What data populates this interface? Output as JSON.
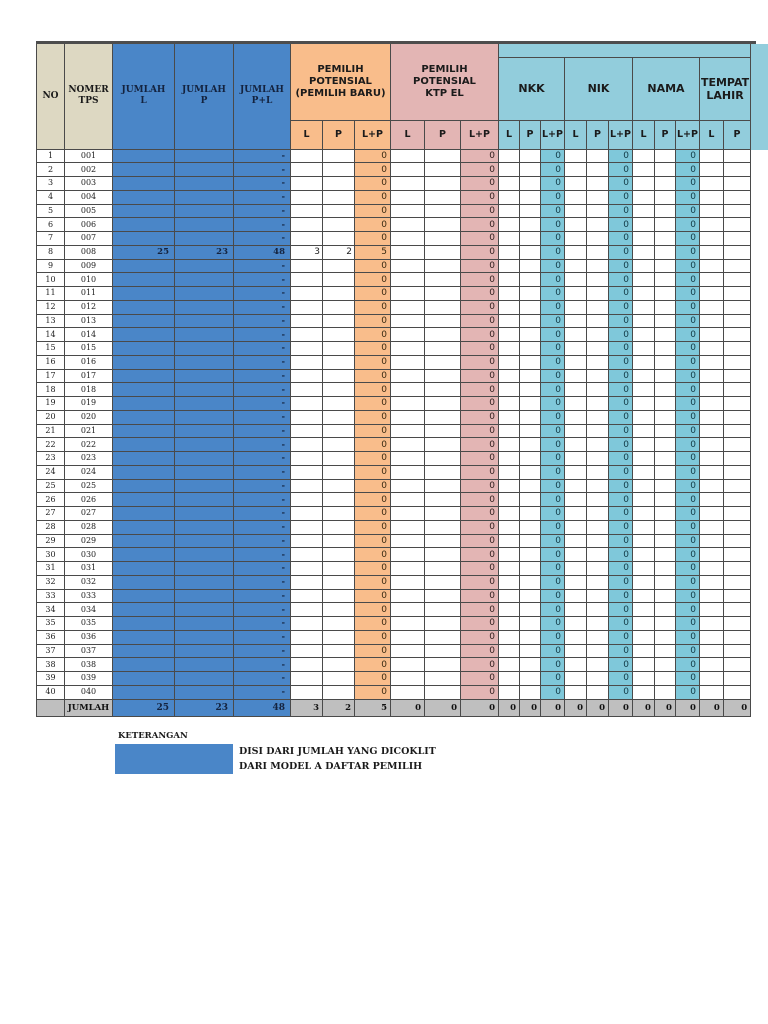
{
  "colors": {
    "blue": "#4a86c8",
    "orange": "#f9bd8b",
    "pink": "#e3b5b4",
    "cyan": "#92cddc",
    "tan": "#ddd8c2",
    "total_gray": "#bfbfbf"
  },
  "table": {
    "headers": {
      "no": "NO",
      "nomer_tps": "NOMER\nTPS",
      "jumlah_l": "JUMLAH\nL",
      "jumlah_p": "JUMLAH\nP",
      "jumlah_pl": "JUMLAH\nP+L",
      "pemilih_baru": "PEMILIH\nPOTENSIAL\n(PEMILIH BARU)",
      "ktp_el": "PEMILIH\nPOTENSIAL\nKTP EL",
      "nkk": "NKK",
      "nik": "NIK",
      "nama": "NAMA",
      "tempat_lahir": "TEMPAT\nLAHIR",
      "band": "",
      "sub": [
        "L",
        "P",
        "L+P"
      ]
    },
    "rows": [
      [
        "1",
        "001",
        "",
        "",
        "-",
        "",
        "",
        "0",
        "",
        "",
        "0",
        "",
        "",
        "0",
        "",
        "",
        "0",
        "",
        "",
        "0",
        "",
        ""
      ],
      [
        "2",
        "002",
        "",
        "",
        "-",
        "",
        "",
        "0",
        "",
        "",
        "0",
        "",
        "",
        "0",
        "",
        "",
        "0",
        "",
        "",
        "0",
        "",
        ""
      ],
      [
        "3",
        "003",
        "",
        "",
        "-",
        "",
        "",
        "0",
        "",
        "",
        "0",
        "",
        "",
        "0",
        "",
        "",
        "0",
        "",
        "",
        "0",
        "",
        ""
      ],
      [
        "4",
        "004",
        "",
        "",
        "-",
        "",
        "",
        "0",
        "",
        "",
        "0",
        "",
        "",
        "0",
        "",
        "",
        "0",
        "",
        "",
        "0",
        "",
        ""
      ],
      [
        "5",
        "005",
        "",
        "",
        "-",
        "",
        "",
        "0",
        "",
        "",
        "0",
        "",
        "",
        "0",
        "",
        "",
        "0",
        "",
        "",
        "0",
        "",
        ""
      ],
      [
        "6",
        "006",
        "",
        "",
        "-",
        "",
        "",
        "0",
        "",
        "",
        "0",
        "",
        "",
        "0",
        "",
        "",
        "0",
        "",
        "",
        "0",
        "",
        ""
      ],
      [
        "7",
        "007",
        "",
        "",
        "-",
        "",
        "",
        "0",
        "",
        "",
        "0",
        "",
        "",
        "0",
        "",
        "",
        "0",
        "",
        "",
        "0",
        "",
        ""
      ],
      [
        "8",
        "008",
        "25",
        "23",
        "48",
        "3",
        "2",
        "5",
        "",
        "",
        "0",
        "",
        "",
        "0",
        "",
        "",
        "0",
        "",
        "",
        "0",
        "",
        ""
      ],
      [
        "9",
        "009",
        "",
        "",
        "-",
        "",
        "",
        "0",
        "",
        "",
        "0",
        "",
        "",
        "0",
        "",
        "",
        "0",
        "",
        "",
        "0",
        "",
        ""
      ],
      [
        "10",
        "010",
        "",
        "",
        "-",
        "",
        "",
        "0",
        "",
        "",
        "0",
        "",
        "",
        "0",
        "",
        "",
        "0",
        "",
        "",
        "0",
        "",
        ""
      ],
      [
        "11",
        "011",
        "",
        "",
        "-",
        "",
        "",
        "0",
        "",
        "",
        "0",
        "",
        "",
        "0",
        "",
        "",
        "0",
        "",
        "",
        "0",
        "",
        ""
      ],
      [
        "12",
        "012",
        "",
        "",
        "-",
        "",
        "",
        "0",
        "",
        "",
        "0",
        "",
        "",
        "0",
        "",
        "",
        "0",
        "",
        "",
        "0",
        "",
        ""
      ],
      [
        "13",
        "013",
        "",
        "",
        "-",
        "",
        "",
        "0",
        "",
        "",
        "0",
        "",
        "",
        "0",
        "",
        "",
        "0",
        "",
        "",
        "0",
        "",
        ""
      ],
      [
        "14",
        "014",
        "",
        "",
        "-",
        "",
        "",
        "0",
        "",
        "",
        "0",
        "",
        "",
        "0",
        "",
        "",
        "0",
        "",
        "",
        "0",
        "",
        ""
      ],
      [
        "15",
        "015",
        "",
        "",
        "-",
        "",
        "",
        "0",
        "",
        "",
        "0",
        "",
        "",
        "0",
        "",
        "",
        "0",
        "",
        "",
        "0",
        "",
        ""
      ],
      [
        "16",
        "016",
        "",
        "",
        "-",
        "",
        "",
        "0",
        "",
        "",
        "0",
        "",
        "",
        "0",
        "",
        "",
        "0",
        "",
        "",
        "0",
        "",
        ""
      ],
      [
        "17",
        "017",
        "",
        "",
        "-",
        "",
        "",
        "0",
        "",
        "",
        "0",
        "",
        "",
        "0",
        "",
        "",
        "0",
        "",
        "",
        "0",
        "",
        ""
      ],
      [
        "18",
        "018",
        "",
        "",
        "-",
        "",
        "",
        "0",
        "",
        "",
        "0",
        "",
        "",
        "0",
        "",
        "",
        "0",
        "",
        "",
        "0",
        "",
        ""
      ],
      [
        "19",
        "019",
        "",
        "",
        "-",
        "",
        "",
        "0",
        "",
        "",
        "0",
        "",
        "",
        "0",
        "",
        "",
        "0",
        "",
        "",
        "0",
        "",
        ""
      ],
      [
        "20",
        "020",
        "",
        "",
        "-",
        "",
        "",
        "0",
        "",
        "",
        "0",
        "",
        "",
        "0",
        "",
        "",
        "0",
        "",
        "",
        "0",
        "",
        ""
      ],
      [
        "21",
        "021",
        "",
        "",
        "-",
        "",
        "",
        "0",
        "",
        "",
        "0",
        "",
        "",
        "0",
        "",
        "",
        "0",
        "",
        "",
        "0",
        "",
        ""
      ],
      [
        "22",
        "022",
        "",
        "",
        "-",
        "",
        "",
        "0",
        "",
        "",
        "0",
        "",
        "",
        "0",
        "",
        "",
        "0",
        "",
        "",
        "0",
        "",
        ""
      ],
      [
        "23",
        "023",
        "",
        "",
        "-",
        "",
        "",
        "0",
        "",
        "",
        "0",
        "",
        "",
        "0",
        "",
        "",
        "0",
        "",
        "",
        "0",
        "",
        ""
      ],
      [
        "24",
        "024",
        "",
        "",
        "-",
        "",
        "",
        "0",
        "",
        "",
        "0",
        "",
        "",
        "0",
        "",
        "",
        "0",
        "",
        "",
        "0",
        "",
        ""
      ],
      [
        "25",
        "025",
        "",
        "",
        "-",
        "",
        "",
        "0",
        "",
        "",
        "0",
        "",
        "",
        "0",
        "",
        "",
        "0",
        "",
        "",
        "0",
        "",
        ""
      ],
      [
        "26",
        "026",
        "",
        "",
        "-",
        "",
        "",
        "0",
        "",
        "",
        "0",
        "",
        "",
        "0",
        "",
        "",
        "0",
        "",
        "",
        "0",
        "",
        ""
      ],
      [
        "27",
        "027",
        "",
        "",
        "-",
        "",
        "",
        "0",
        "",
        "",
        "0",
        "",
        "",
        "0",
        "",
        "",
        "0",
        "",
        "",
        "0",
        "",
        ""
      ],
      [
        "28",
        "028",
        "",
        "",
        "-",
        "",
        "",
        "0",
        "",
        "",
        "0",
        "",
        "",
        "0",
        "",
        "",
        "0",
        "",
        "",
        "0",
        "",
        ""
      ],
      [
        "29",
        "029",
        "",
        "",
        "-",
        "",
        "",
        "0",
        "",
        "",
        "0",
        "",
        "",
        "0",
        "",
        "",
        "0",
        "",
        "",
        "0",
        "",
        ""
      ],
      [
        "30",
        "030",
        "",
        "",
        "-",
        "",
        "",
        "0",
        "",
        "",
        "0",
        "",
        "",
        "0",
        "",
        "",
        "0",
        "",
        "",
        "0",
        "",
        ""
      ],
      [
        "31",
        "031",
        "",
        "",
        "-",
        "",
        "",
        "0",
        "",
        "",
        "0",
        "",
        "",
        "0",
        "",
        "",
        "0",
        "",
        "",
        "0",
        "",
        ""
      ],
      [
        "32",
        "032",
        "",
        "",
        "-",
        "",
        "",
        "0",
        "",
        "",
        "0",
        "",
        "",
        "0",
        "",
        "",
        "0",
        "",
        "",
        "0",
        "",
        ""
      ],
      [
        "33",
        "033",
        "",
        "",
        "-",
        "",
        "",
        "0",
        "",
        "",
        "0",
        "",
        "",
        "0",
        "",
        "",
        "0",
        "",
        "",
        "0",
        "",
        ""
      ],
      [
        "34",
        "034",
        "",
        "",
        "-",
        "",
        "",
        "0",
        "",
        "",
        "0",
        "",
        "",
        "0",
        "",
        "",
        "0",
        "",
        "",
        "0",
        "",
        ""
      ],
      [
        "35",
        "035",
        "",
        "",
        "-",
        "",
        "",
        "0",
        "",
        "",
        "0",
        "",
        "",
        "0",
        "",
        "",
        "0",
        "",
        "",
        "0",
        "",
        ""
      ],
      [
        "36",
        "036",
        "",
        "",
        "-",
        "",
        "",
        "0",
        "",
        "",
        "0",
        "",
        "",
        "0",
        "",
        "",
        "0",
        "",
        "",
        "0",
        "",
        ""
      ],
      [
        "37",
        "037",
        "",
        "",
        "-",
        "",
        "",
        "0",
        "",
        "",
        "0",
        "",
        "",
        "0",
        "",
        "",
        "0",
        "",
        "",
        "0",
        "",
        ""
      ],
      [
        "38",
        "038",
        "",
        "",
        "-",
        "",
        "",
        "0",
        "",
        "",
        "0",
        "",
        "",
        "0",
        "",
        "",
        "0",
        "",
        "",
        "0",
        "",
        ""
      ],
      [
        "39",
        "039",
        "",
        "",
        "-",
        "",
        "",
        "0",
        "",
        "",
        "0",
        "",
        "",
        "0",
        "",
        "",
        "0",
        "",
        "",
        "0",
        "",
        ""
      ],
      [
        "40",
        "040",
        "",
        "",
        "-",
        "",
        "",
        "0",
        "",
        "",
        "0",
        "",
        "",
        "0",
        "",
        "",
        "0",
        "",
        "",
        "0",
        "",
        ""
      ]
    ],
    "total": [
      "",
      "JUMLAH",
      "25",
      "23",
      "48",
      "3",
      "2",
      "5",
      "0",
      "0",
      "0",
      "0",
      "0",
      "0",
      "0",
      "0",
      "0",
      "0",
      "0",
      "0",
      "0",
      "0"
    ]
  },
  "keterangan": {
    "title": "KETERANGAN",
    "line1": "DISI DARI JUMLAH YANG DICOKLIT",
    "line2": "DARI MODEL A DAFTAR PEMILIH"
  }
}
